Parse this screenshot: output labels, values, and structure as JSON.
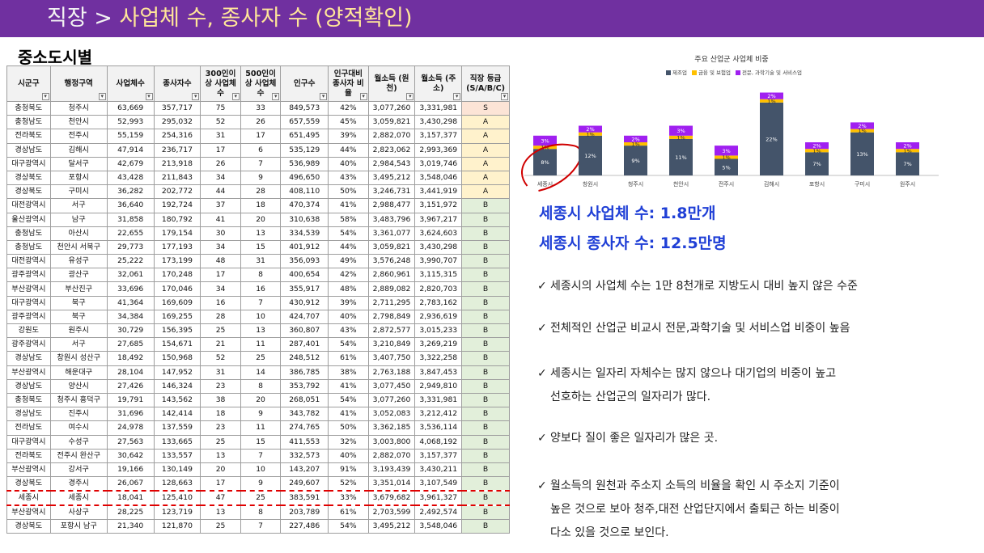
{
  "header": {
    "prefix": "직장 >",
    "title": "사업체 수, 종사자 수 (양적확인)"
  },
  "section_title": "중소도시별",
  "table": {
    "columns": [
      "시군구",
      "행정구역",
      "사업체수",
      "종사자수",
      "300인이상 사업체수",
      "500인이상 사업체수",
      "인구수",
      "인구대비 종사자 비율",
      "월소득 (원천)",
      "월소득 (주소)",
      "직장 등급 (S/A/B/C)"
    ],
    "rows": [
      [
        "충청북도",
        "청주시",
        "63,669",
        "357,717",
        "75",
        "33",
        "849,573",
        "42%",
        "3,077,260",
        "3,331,981",
        "S"
      ],
      [
        "충청남도",
        "천안시",
        "52,993",
        "295,032",
        "52",
        "26",
        "657,559",
        "45%",
        "3,059,821",
        "3,430,298",
        "A"
      ],
      [
        "전라북도",
        "전주시",
        "55,159",
        "254,316",
        "31",
        "17",
        "651,495",
        "39%",
        "2,882,070",
        "3,157,377",
        "A"
      ],
      [
        "경상남도",
        "김해시",
        "47,914",
        "236,717",
        "17",
        "6",
        "535,129",
        "44%",
        "2,823,062",
        "2,993,369",
        "A"
      ],
      [
        "대구광역시",
        "달서구",
        "42,679",
        "213,918",
        "26",
        "7",
        "536,989",
        "40%",
        "2,984,543",
        "3,019,746",
        "A"
      ],
      [
        "경상북도",
        "포항시",
        "43,428",
        "211,843",
        "34",
        "9",
        "496,650",
        "43%",
        "3,495,212",
        "3,548,046",
        "A"
      ],
      [
        "경상북도",
        "구미시",
        "36,282",
        "202,772",
        "44",
        "28",
        "408,110",
        "50%",
        "3,246,731",
        "3,441,919",
        "A"
      ],
      [
        "대전광역시",
        "서구",
        "36,640",
        "192,724",
        "37",
        "18",
        "470,374",
        "41%",
        "2,988,477",
        "3,151,972",
        "B"
      ],
      [
        "울산광역시",
        "남구",
        "31,858",
        "180,792",
        "41",
        "20",
        "310,638",
        "58%",
        "3,483,796",
        "3,967,217",
        "B"
      ],
      [
        "충청남도",
        "아산시",
        "22,655",
        "179,154",
        "30",
        "13",
        "334,539",
        "54%",
        "3,361,077",
        "3,624,603",
        "B"
      ],
      [
        "충청남도",
        "천안시 서북구",
        "29,773",
        "177,193",
        "34",
        "15",
        "401,912",
        "44%",
        "3,059,821",
        "3,430,298",
        "B"
      ],
      [
        "대전광역시",
        "유성구",
        "25,222",
        "173,199",
        "48",
        "31",
        "356,093",
        "49%",
        "3,576,248",
        "3,990,707",
        "B"
      ],
      [
        "광주광역시",
        "광산구",
        "32,061",
        "170,248",
        "17",
        "8",
        "400,654",
        "42%",
        "2,860,961",
        "3,115,315",
        "B"
      ],
      [
        "부산광역시",
        "부산진구",
        "33,696",
        "170,046",
        "34",
        "16",
        "355,917",
        "48%",
        "2,889,082",
        "2,820,703",
        "B"
      ],
      [
        "대구광역시",
        "북구",
        "41,364",
        "169,609",
        "16",
        "7",
        "430,912",
        "39%",
        "2,711,295",
        "2,783,162",
        "B"
      ],
      [
        "광주광역시",
        "북구",
        "34,384",
        "169,255",
        "28",
        "10",
        "424,707",
        "40%",
        "2,798,849",
        "2,936,619",
        "B"
      ],
      [
        "강원도",
        "원주시",
        "30,729",
        "156,395",
        "25",
        "13",
        "360,807",
        "43%",
        "2,872,577",
        "3,015,233",
        "B"
      ],
      [
        "광주광역시",
        "서구",
        "27,685",
        "154,671",
        "21",
        "11",
        "287,401",
        "54%",
        "3,210,849",
        "3,269,219",
        "B"
      ],
      [
        "경상남도",
        "창원시 성산구",
        "18,492",
        "150,968",
        "52",
        "25",
        "248,512",
        "61%",
        "3,407,750",
        "3,322,258",
        "B"
      ],
      [
        "부산광역시",
        "해운대구",
        "28,104",
        "147,952",
        "31",
        "14",
        "386,785",
        "38%",
        "2,763,188",
        "3,847,453",
        "B"
      ],
      [
        "경상남도",
        "양산시",
        "27,426",
        "146,324",
        "23",
        "8",
        "353,792",
        "41%",
        "3,077,450",
        "2,949,810",
        "B"
      ],
      [
        "충청북도",
        "청주시 흥덕구",
        "19,791",
        "143,562",
        "38",
        "20",
        "268,051",
        "54%",
        "3,077,260",
        "3,331,981",
        "B"
      ],
      [
        "경상남도",
        "진주시",
        "31,696",
        "142,414",
        "18",
        "9",
        "343,782",
        "41%",
        "3,052,083",
        "3,212,412",
        "B"
      ],
      [
        "전라남도",
        "여수시",
        "24,978",
        "137,559",
        "23",
        "11",
        "274,765",
        "50%",
        "3,362,185",
        "3,536,114",
        "B"
      ],
      [
        "대구광역시",
        "수성구",
        "27,563",
        "133,665",
        "25",
        "15",
        "411,553",
        "32%",
        "3,003,800",
        "4,068,192",
        "B"
      ],
      [
        "전라북도",
        "전주시 완산구",
        "30,642",
        "133,557",
        "13",
        "7",
        "332,573",
        "40%",
        "2,882,070",
        "3,157,377",
        "B"
      ],
      [
        "부산광역시",
        "강서구",
        "19,166",
        "130,149",
        "20",
        "10",
        "143,207",
        "91%",
        "3,193,439",
        "3,430,211",
        "B"
      ],
      [
        "경상북도",
        "경주시",
        "26,067",
        "128,663",
        "17",
        "9",
        "249,607",
        "52%",
        "3,351,014",
        "3,107,549",
        "B"
      ],
      [
        "세종시",
        "세종시",
        "18,041",
        "125,410",
        "47",
        "25",
        "383,591",
        "33%",
        "3,679,682",
        "3,961,327",
        "B"
      ],
      [
        "부산광역시",
        "사상구",
        "28,225",
        "123,719",
        "13",
        "8",
        "203,789",
        "61%",
        "2,703,599",
        "2,492,574",
        "B"
      ],
      [
        "경상북도",
        "포항시 남구",
        "21,340",
        "121,870",
        "25",
        "7",
        "227,486",
        "54%",
        "3,495,212",
        "3,548,046",
        "B"
      ]
    ]
  },
  "chart_data": {
    "type": "bar",
    "stacked": true,
    "title": "주요 산업군 사업체 비중",
    "categories": [
      "세종시",
      "창원시",
      "청주시",
      "천안시",
      "전주시",
      "김해시",
      "포항시",
      "구미시",
      "원주시"
    ],
    "series": [
      {
        "name": "제조업",
        "color": "#44546a",
        "values": [
          8,
          12,
          9,
          11,
          5,
          22,
          7,
          13,
          7
        ]
      },
      {
        "name": "금융 및 보험업",
        "color": "#ffc000",
        "values": [
          1,
          1,
          1,
          1,
          1,
          1,
          1,
          1,
          1
        ]
      },
      {
        "name": "전문, 과학기술 및 서비스업",
        "color": "#a020f0",
        "values": [
          3,
          2,
          2,
          3,
          3,
          2,
          2,
          2,
          2
        ]
      }
    ],
    "data_labels": [
      [
        "8%",
        "12%",
        "9%",
        "11%",
        "5%",
        "22%",
        "7%",
        "13%",
        "7%"
      ],
      [
        "1%",
        "1%",
        "1%",
        "1%",
        "1%",
        "1%",
        "1%",
        "1%",
        "1%"
      ],
      [
        "3%",
        "2%",
        "2%",
        "3%",
        "3%",
        "2%",
        "2%",
        "2%",
        "2%"
      ]
    ],
    "highlight": "세종시"
  },
  "summary": {
    "line1": "세종시 사업체 수: 1.8만개",
    "line2": "세종시 종사자 수: 12.5만명"
  },
  "bullets": [
    {
      "check": "✓",
      "lines": [
        "세종시의 사업체 수는 1만 8천개로 지방도시 대비 높지 않은 수준"
      ]
    },
    {
      "check": "✓",
      "lines": [
        "전체적인 산업군 비교시 전문,과학기술 및 서비스업 비중이 높음"
      ]
    },
    {
      "check": "✓",
      "lines": [
        "세종시는 일자리 자체수는 많지 않으나 대기업의 비중이 높고",
        "선호하는 산업군의 일자리가 많다."
      ]
    },
    {
      "check": "✓",
      "lines": [
        "양보다 질이 좋은 일자리가 많은 곳."
      ]
    },
    {
      "check": "✓",
      "lines": [
        "월소득의 원천과 주소지 소득의 비율을 확인 시 주소지 기준이",
        "높은 것으로 보아 청주,대전 산업단지에서 출퇴근 하는 비중이",
        "다소 있을 것으로 보인다."
      ]
    }
  ]
}
